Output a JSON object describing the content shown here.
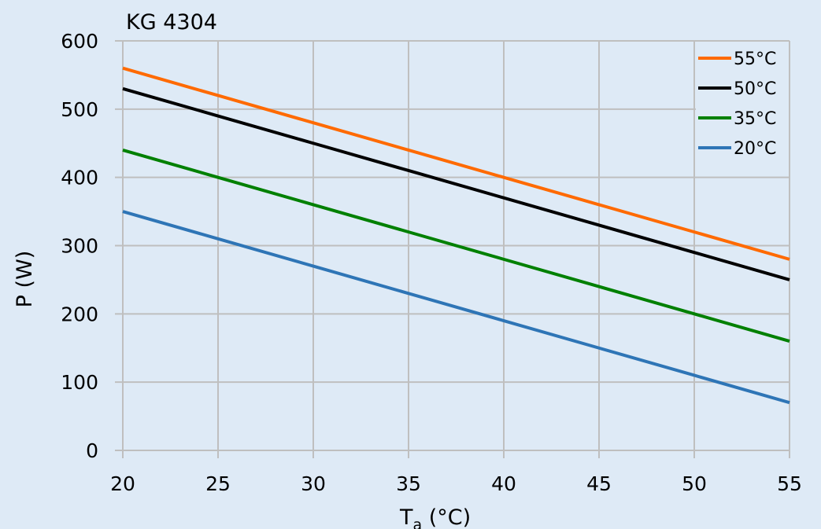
{
  "chart_data": {
    "type": "line",
    "title": "KG 4304",
    "xlabel": "T_a (°C)",
    "xlabel_main": "T",
    "xlabel_sub": "a",
    "xlabel_unit": " (°C)",
    "ylabel": "P (W)",
    "xlim": [
      20,
      55
    ],
    "ylim": [
      0,
      600
    ],
    "x_ticks": [
      20,
      25,
      30,
      35,
      40,
      45,
      50,
      55
    ],
    "y_ticks": [
      0,
      100,
      200,
      300,
      400,
      500,
      600
    ],
    "grid": true,
    "legend_position": "top-right",
    "x": [
      20,
      25,
      30,
      35,
      40,
      45,
      50,
      55
    ],
    "series": [
      {
        "name": "55°C",
        "color": "#ff6a00",
        "values": [
          560,
          520,
          480,
          440,
          400,
          360,
          320,
          280
        ]
      },
      {
        "name": "50°C",
        "color": "#000000",
        "values": [
          530,
          490,
          450,
          410,
          370,
          330,
          290,
          250
        ]
      },
      {
        "name": "35°C",
        "color": "#008000",
        "values": [
          440,
          400,
          360,
          320,
          280,
          240,
          200,
          160
        ]
      },
      {
        "name": "20°C",
        "color": "#2e75b6",
        "values": [
          350,
          310,
          270,
          230,
          190,
          150,
          110,
          70
        ]
      }
    ]
  },
  "colors": {
    "background": "#deeaf6",
    "gridline": "#bfbfbf"
  }
}
